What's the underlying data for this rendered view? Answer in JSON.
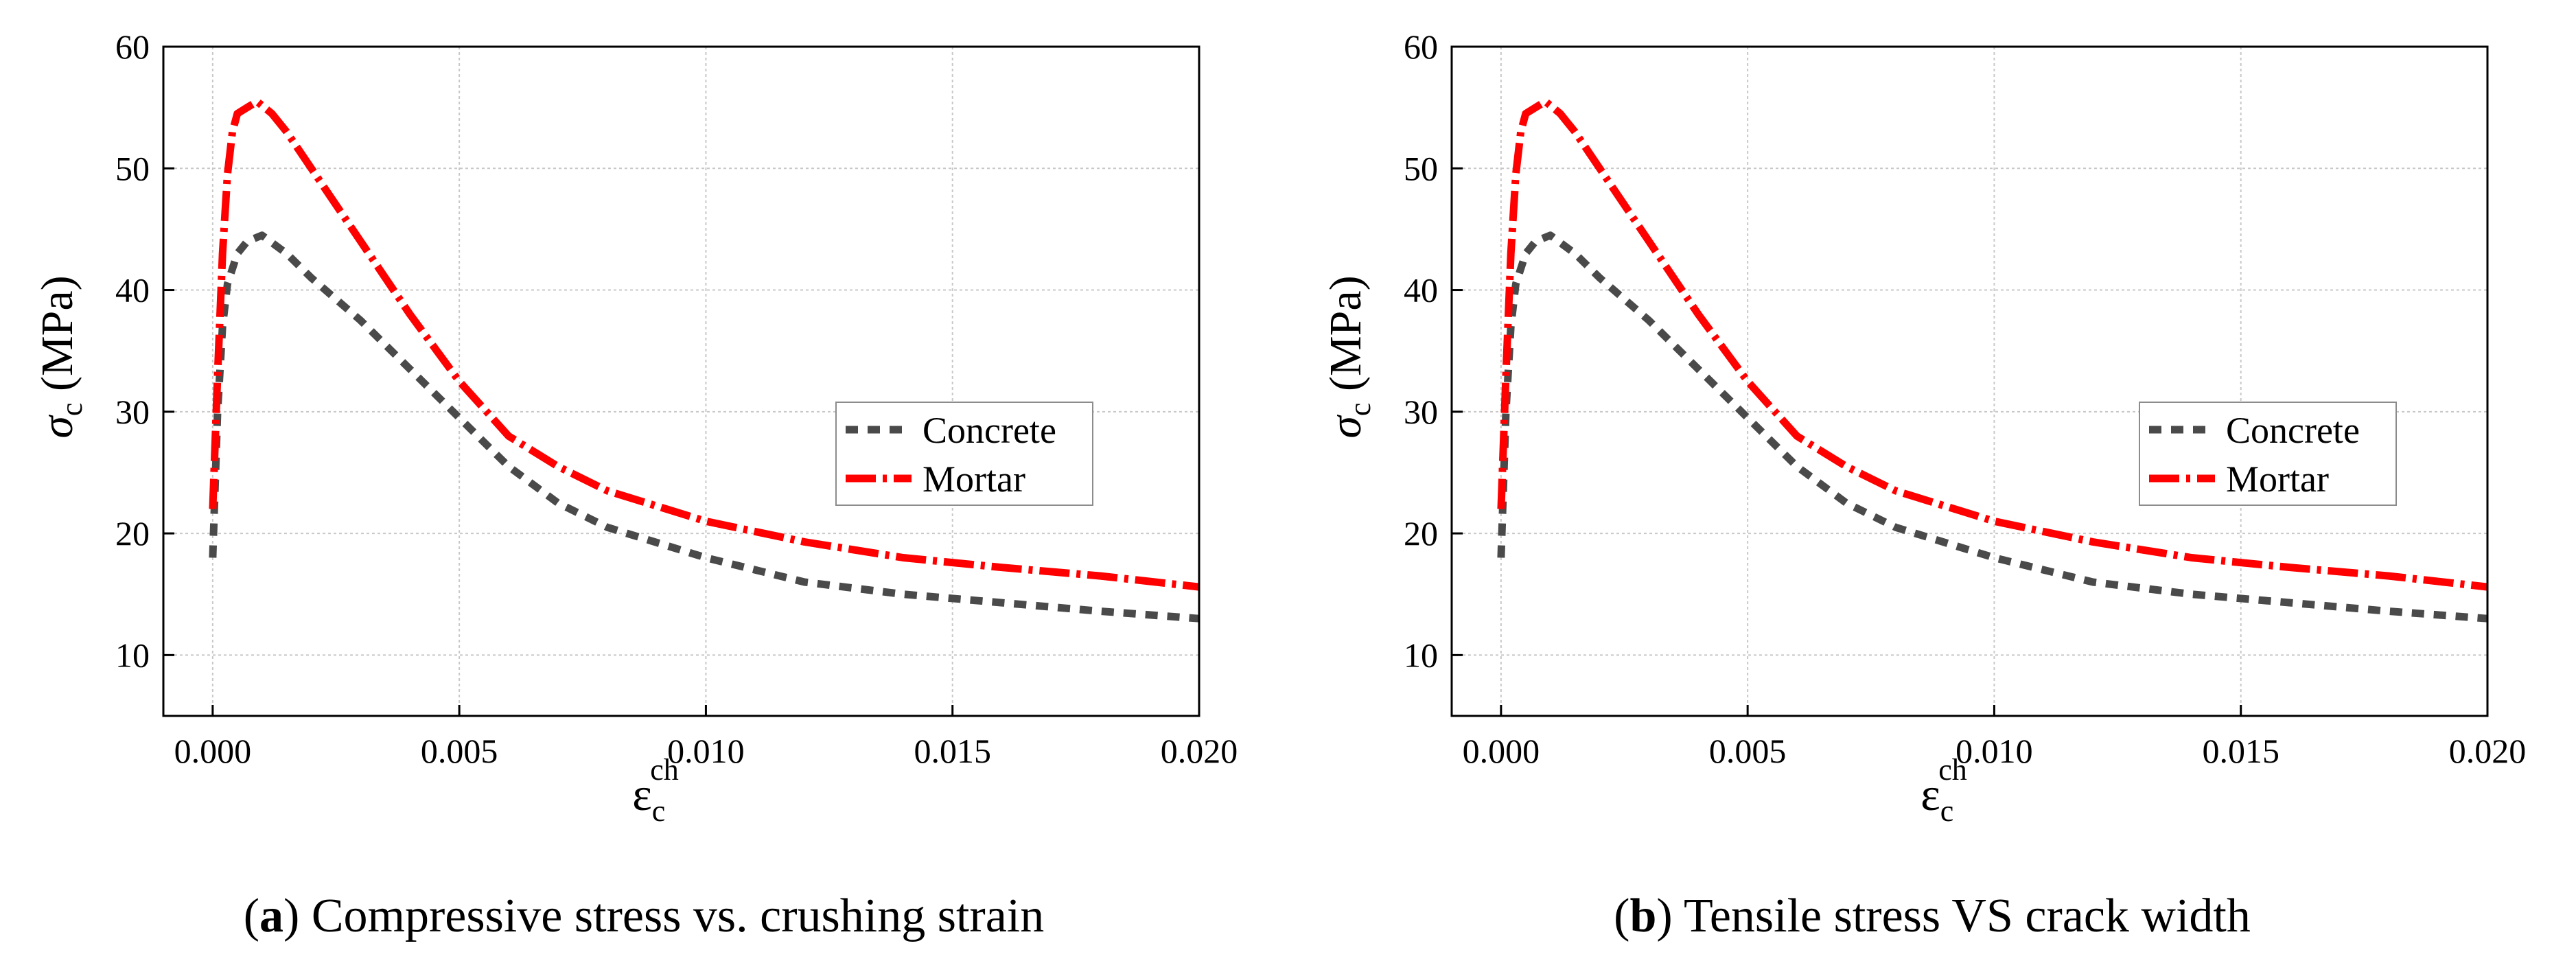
{
  "colors": {
    "concrete": "#4a4a4a",
    "mortar": "#ff0000",
    "grid": "#c8c8c8"
  },
  "panels": [
    {
      "caption_tag": "a",
      "caption_text": "Compressive stress vs. crushing strain",
      "ylabel_main": "σ",
      "ylabel_sub": "c",
      "ylabel_unit": " (MPa)",
      "xlabel_main": "ε",
      "xlabel_sub": "c",
      "xlabel_sup": "ch",
      "legend": [
        "Concrete",
        "Mortar"
      ]
    },
    {
      "caption_tag": "b",
      "caption_text": "Tensile stress VS crack width",
      "ylabel_main": "σ",
      "ylabel_sub": "c",
      "ylabel_unit": " (MPa)",
      "xlabel_main": "ε",
      "xlabel_sub": "c",
      "xlabel_sup": "ch",
      "legend": [
        "Concrete",
        "Mortar"
      ]
    }
  ],
  "chart_data": [
    {
      "type": "line",
      "xlim": [
        -0.001,
        0.02
      ],
      "ylim": [
        5,
        60
      ],
      "xticks": [
        "0.000",
        "0.005",
        "0.010",
        "0.015",
        "0.020"
      ],
      "xtick_values": [
        0,
        0.005,
        0.01,
        0.015,
        0.02
      ],
      "yticks": [
        "10",
        "20",
        "30",
        "40",
        "50",
        "60"
      ],
      "ytick_values": [
        10,
        20,
        30,
        40,
        50,
        60
      ],
      "grid": true,
      "legend_position": "right",
      "series": [
        {
          "name": "Concrete",
          "x": [
            0,
            0.0001,
            0.0002,
            0.0003,
            0.0005,
            0.0007,
            0.001,
            0.0015,
            0.002,
            0.003,
            0.004,
            0.005,
            0.006,
            0.007,
            0.008,
            0.01,
            0.012,
            0.014,
            0.016,
            0.018,
            0.02
          ],
          "y": [
            18,
            30,
            37,
            40.5,
            43,
            44,
            44.5,
            43,
            41,
            37.5,
            33.5,
            29.5,
            25.5,
            22.5,
            20.5,
            18,
            16,
            15,
            14.3,
            13.6,
            13
          ]
        },
        {
          "name": "Mortar",
          "x": [
            0,
            0.0001,
            0.0002,
            0.0003,
            0.0004,
            0.0005,
            0.0007,
            0.0009,
            0.0012,
            0.0015,
            0.002,
            0.003,
            0.004,
            0.005,
            0.006,
            0.007,
            0.008,
            0.01,
            0.012,
            0.014,
            0.016,
            0.018,
            0.02
          ],
          "y": [
            22,
            33,
            43,
            49.5,
            53,
            54.5,
            55,
            55.5,
            54.5,
            53,
            50,
            44,
            38,
            32.5,
            28,
            25.5,
            23.5,
            21,
            19.3,
            18,
            17.2,
            16.5,
            15.6
          ]
        }
      ]
    },
    {
      "type": "line",
      "xlim": [
        -0.001,
        0.02
      ],
      "ylim": [
        5,
        60
      ],
      "xticks": [
        "0.000",
        "0.005",
        "0.010",
        "0.015",
        "0.020"
      ],
      "xtick_values": [
        0,
        0.005,
        0.01,
        0.015,
        0.02
      ],
      "yticks": [
        "10",
        "20",
        "30",
        "40",
        "50",
        "60"
      ],
      "ytick_values": [
        10,
        20,
        30,
        40,
        50,
        60
      ],
      "grid": true,
      "legend_position": "right",
      "series": [
        {
          "name": "Concrete",
          "x": [
            0,
            0.0001,
            0.0002,
            0.0003,
            0.0005,
            0.0007,
            0.001,
            0.0015,
            0.002,
            0.003,
            0.004,
            0.005,
            0.006,
            0.007,
            0.008,
            0.01,
            0.012,
            0.014,
            0.016,
            0.018,
            0.02
          ],
          "y": [
            18,
            30,
            37,
            40.5,
            43,
            44,
            44.5,
            43,
            41,
            37.5,
            33.5,
            29.5,
            25.5,
            22.5,
            20.5,
            18,
            16,
            15,
            14.3,
            13.6,
            13
          ]
        },
        {
          "name": "Mortar",
          "x": [
            0,
            0.0001,
            0.0002,
            0.0003,
            0.0004,
            0.0005,
            0.0007,
            0.0009,
            0.0012,
            0.0015,
            0.002,
            0.003,
            0.004,
            0.005,
            0.006,
            0.007,
            0.008,
            0.01,
            0.012,
            0.014,
            0.016,
            0.018,
            0.02
          ],
          "y": [
            22,
            33,
            43,
            49.5,
            53,
            54.5,
            55,
            55.5,
            54.5,
            53,
            50,
            44,
            38,
            32.5,
            28,
            25.5,
            23.5,
            21,
            19.3,
            18,
            17.2,
            16.5,
            15.6
          ]
        }
      ]
    }
  ]
}
